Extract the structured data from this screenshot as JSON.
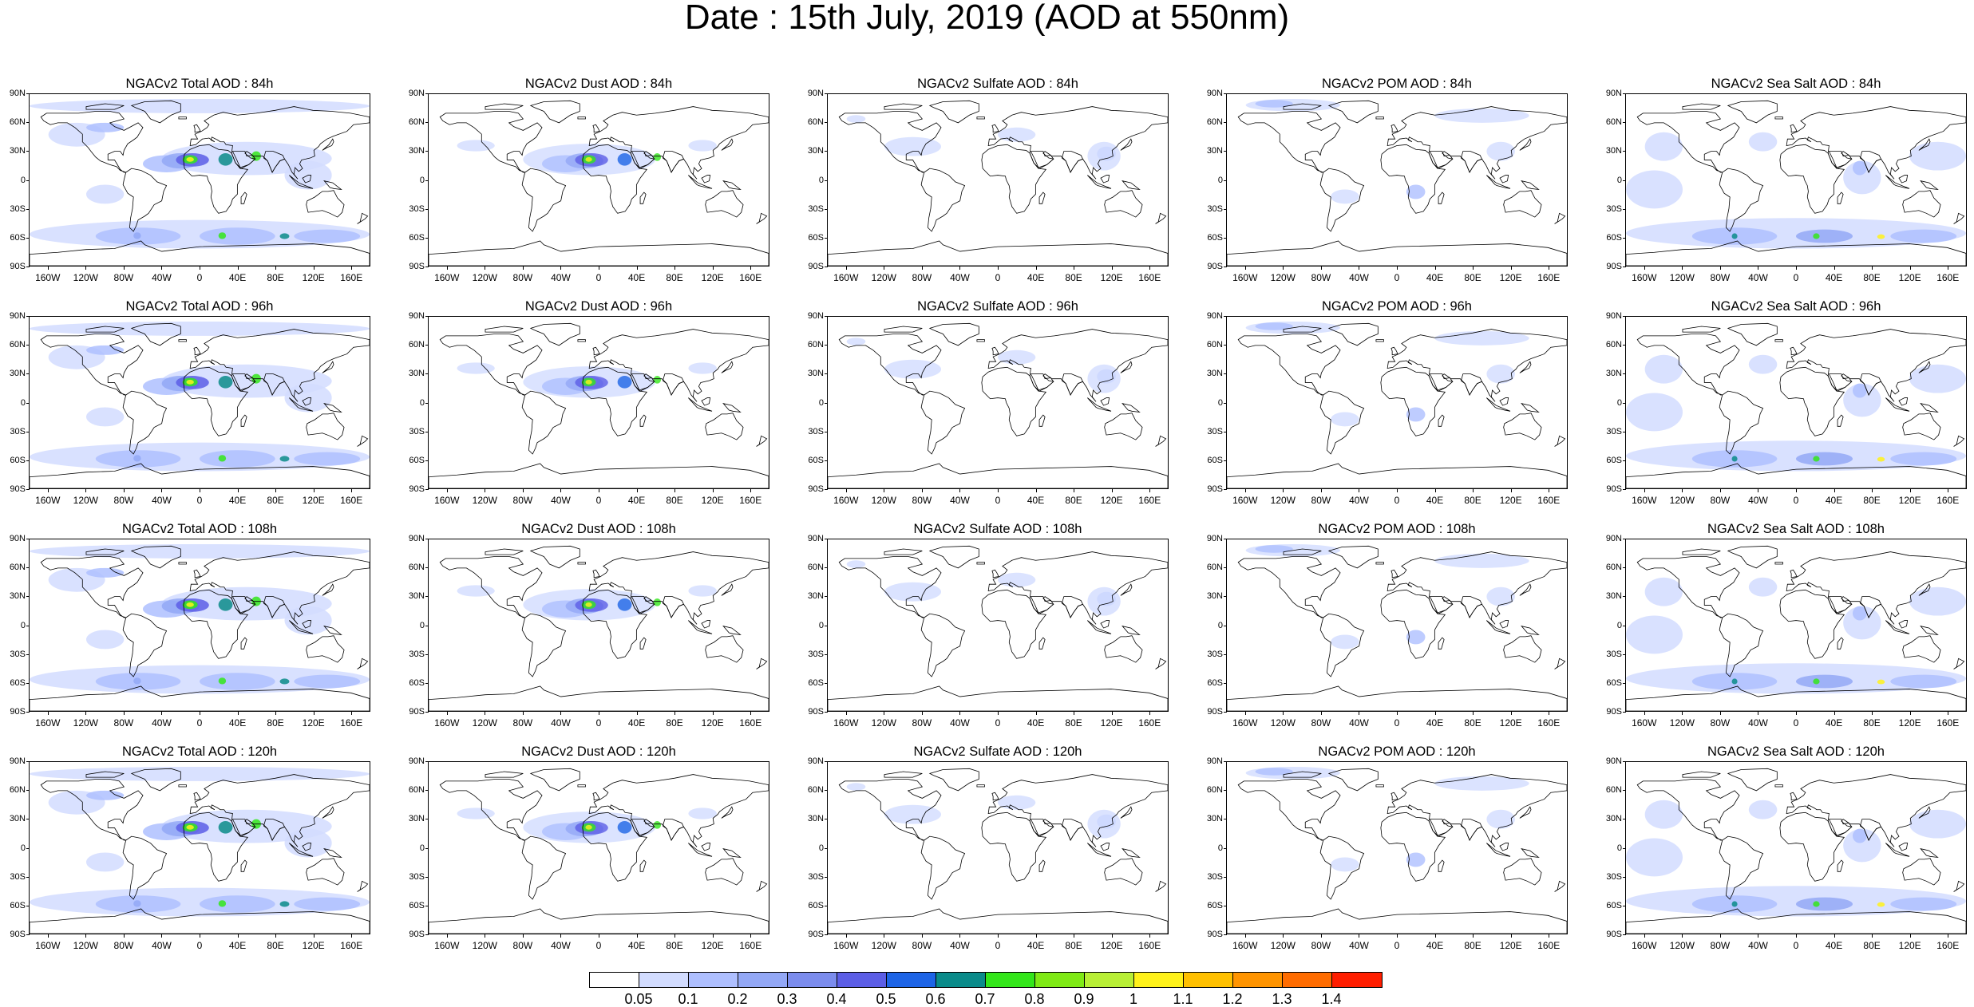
{
  "title": "Date : 15th July, 2019 (AOD at 550nm)",
  "lat_labels": [
    "90N",
    "60N",
    "30N",
    "0",
    "30S",
    "60S",
    "90S"
  ],
  "lon_labels": [
    "160W",
    "120W",
    "80W",
    "40W",
    "0",
    "40E",
    "80E",
    "120E",
    "160E"
  ],
  "lon_values": [
    -160,
    -120,
    -80,
    -40,
    0,
    40,
    80,
    120,
    160
  ],
  "colorbar": {
    "levels": [
      "0.05",
      "0.1",
      "0.2",
      "0.3",
      "0.4",
      "0.5",
      "0.6",
      "0.7",
      "0.8",
      "0.9",
      "1",
      "1.1",
      "1.2",
      "1.3",
      "1.4"
    ],
    "colors": [
      "#ffffff",
      "#d2dcff",
      "#aebfff",
      "#93a8f6",
      "#7b8ced",
      "#5c5ee6",
      "#1d64e6",
      "#0a8b8a",
      "#33e61a",
      "#7fea15",
      "#b8ef35",
      "#fff21a",
      "#ffc000",
      "#ff9400",
      "#ff6c00",
      "#ff1e00"
    ]
  },
  "panels": [
    [
      {
        "title": "NGACv2 Total AOD : 84h",
        "species": "total"
      },
      {
        "title": "NGACv2 Dust AOD : 84h",
        "species": "dust"
      },
      {
        "title": "NGACv2 Sulfate AOD : 84h",
        "species": "sulfate"
      },
      {
        "title": "NGACv2 POM AOD : 84h",
        "species": "pom"
      },
      {
        "title": "NGACv2 Sea Salt AOD : 84h",
        "species": "seasalt"
      }
    ],
    [
      {
        "title": "NGACv2 Total AOD : 96h",
        "species": "total"
      },
      {
        "title": "NGACv2 Dust AOD : 96h",
        "species": "dust"
      },
      {
        "title": "NGACv2 Sulfate AOD : 96h",
        "species": "sulfate"
      },
      {
        "title": "NGACv2 POM AOD : 96h",
        "species": "pom"
      },
      {
        "title": "NGACv2 Sea Salt AOD : 96h",
        "species": "seasalt"
      }
    ],
    [
      {
        "title": "NGACv2 Total AOD : 108h",
        "species": "total"
      },
      {
        "title": "NGACv2 Dust AOD : 108h",
        "species": "dust"
      },
      {
        "title": "NGACv2 Sulfate AOD : 108h",
        "species": "sulfate"
      },
      {
        "title": "NGACv2 POM AOD : 108h",
        "species": "pom"
      },
      {
        "title": "NGACv2 Sea Salt AOD : 108h",
        "species": "seasalt"
      }
    ],
    [
      {
        "title": "NGACv2 Total AOD : 120h",
        "species": "total"
      },
      {
        "title": "NGACv2 Dust AOD : 120h",
        "species": "dust"
      },
      {
        "title": "NGACv2 Sulfate AOD : 120h",
        "species": "sulfate"
      },
      {
        "title": "NGACv2 POM AOD : 120h",
        "species": "pom"
      },
      {
        "title": "NGACv2 Sea Salt  AOD : 120h",
        "species": "seasalt"
      }
    ]
  ]
}
